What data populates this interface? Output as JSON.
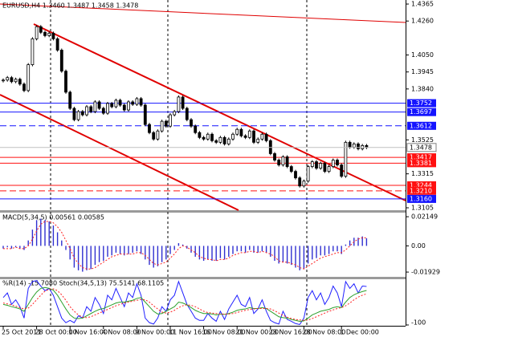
{
  "chart_data": [
    {
      "type": "candlestick",
      "title": "EURUSD,H4 1.3460 1.3487 1.3458 1.3478",
      "categories": [
        "25 Oct 2011",
        null,
        null,
        null,
        null,
        null,
        null,
        null,
        "28 Oct 00:00",
        null,
        null,
        null,
        null,
        null,
        null,
        null,
        "1 Nov 16:00",
        null,
        null,
        null,
        null,
        null,
        null,
        null,
        "4 Nov 08:00",
        null,
        null,
        null,
        null,
        null,
        null,
        null,
        "9 Nov 00:00",
        null,
        null,
        null,
        null,
        null,
        null,
        null,
        "11 Nov 16:00",
        null,
        null,
        null,
        null,
        null,
        null,
        null,
        "16 Nov 08:00",
        null,
        null,
        null,
        null,
        null,
        null,
        null,
        "21 Nov 00:00",
        null,
        null,
        null,
        null,
        null,
        null,
        null,
        "23 Nov 16:00",
        null,
        null,
        null,
        null,
        null,
        null,
        null,
        "28 Nov 08:00",
        null,
        null,
        null,
        null,
        null,
        null,
        null,
        null,
        "1 Dec 00:00",
        null,
        null,
        null,
        null,
        null,
        null
      ],
      "close": [
        1.3895,
        1.391,
        1.3885,
        1.39,
        1.387,
        1.383,
        1.399,
        1.415,
        1.4225,
        1.419,
        1.417,
        1.4185,
        1.415,
        1.408,
        1.395,
        1.382,
        1.372,
        1.365,
        1.37,
        1.368,
        1.373,
        1.37,
        1.376,
        1.372,
        1.369,
        1.375,
        1.373,
        1.377,
        1.374,
        1.371,
        1.376,
        1.3745,
        1.378,
        1.374,
        1.362,
        1.357,
        1.353,
        1.358,
        1.364,
        1.361,
        1.368,
        1.37,
        1.379,
        1.372,
        1.365,
        1.361,
        1.357,
        1.354,
        1.353,
        1.356,
        1.352,
        1.351,
        1.354,
        1.35,
        1.353,
        1.356,
        1.359,
        1.355,
        1.354,
        1.358,
        1.351,
        1.353,
        1.356,
        1.352,
        1.344,
        1.34,
        1.337,
        1.342,
        1.336,
        1.333,
        1.329,
        1.324,
        1.327,
        1.336,
        1.339,
        1.335,
        1.338,
        1.333,
        1.336,
        1.34,
        1.337,
        1.33,
        1.351,
        1.348,
        1.35,
        1.347,
        1.349,
        1.3478
      ],
      "ylim": [
        1.309,
        1.439
      ],
      "yticks": [
        1.4365,
        {
          "value": 1.426,
          "label": "1.4260"
        },
        {
          "value": 1.405,
          "label": "1.4050"
        },
        1.3945,
        {
          "value": 1.384,
          "label": "1.3840"
        },
        1.3525,
        1.3315,
        1.3105
      ],
      "levels": [
        {
          "value": 1.3752,
          "color": "#1414ff",
          "dashed": false
        },
        {
          "value": 1.3697,
          "color": "#1414ff",
          "dashed": false
        },
        {
          "value": 1.3612,
          "color": "#1414ff",
          "dashed": true
        },
        {
          "value": 1.3417,
          "color": "#ff1010",
          "dashed": false
        },
        {
          "value": 1.3381,
          "color": "#ff1010",
          "dashed": false
        },
        {
          "value": 1.3244,
          "color": "#ff1010",
          "dashed": false
        },
        {
          "value": 1.321,
          "label": "1.3210",
          "color": "#ff1010",
          "dashed": true
        },
        {
          "value": 1.316,
          "label": "1.3160",
          "color": "#1414ff",
          "dashed": false
        }
      ]
    },
    {
      "type": "bar",
      "title": "MACD(5,34,5) 0.00561 0.00585",
      "color": "#2f2fd0",
      "signal_color": "#ff2020",
      "values": [
        -0.002,
        -0.001,
        -0.002,
        -0.001,
        -0.002,
        -0.003,
        0.004,
        0.012,
        0.019,
        0.02,
        0.019,
        0.018,
        0.015,
        0.01,
        0.004,
        -0.003,
        -0.01,
        -0.016,
        -0.018,
        -0.019,
        -0.018,
        -0.017,
        -0.014,
        -0.012,
        -0.011,
        -0.008,
        -0.007,
        -0.005,
        -0.006,
        -0.007,
        -0.006,
        -0.005,
        -0.004,
        -0.006,
        -0.01,
        -0.014,
        -0.016,
        -0.015,
        -0.012,
        -0.01,
        -0.006,
        -0.003,
        0.002,
        0.001,
        -0.002,
        -0.005,
        -0.008,
        -0.01,
        -0.011,
        -0.01,
        -0.011,
        -0.011,
        -0.009,
        -0.01,
        -0.008,
        -0.006,
        -0.004,
        -0.004,
        -0.005,
        -0.003,
        -0.005,
        -0.005,
        -0.004,
        -0.005,
        -0.008,
        -0.011,
        -0.013,
        -0.012,
        -0.013,
        -0.014,
        -0.016,
        -0.018,
        -0.017,
        -0.013,
        -0.01,
        -0.009,
        -0.007,
        -0.007,
        -0.006,
        -0.004,
        -0.004,
        -0.006,
        0.001,
        0.004,
        0.006,
        0.006,
        0.007,
        0.00561
      ],
      "signal": [
        -0.002,
        -0.002,
        -0.002,
        -0.001,
        -0.002,
        -0.002,
        0.0,
        0.005,
        0.011,
        0.016,
        0.018,
        0.018,
        0.017,
        0.014,
        0.01,
        0.004,
        -0.002,
        -0.009,
        -0.013,
        -0.016,
        -0.017,
        -0.017,
        -0.016,
        -0.014,
        -0.012,
        -0.01,
        -0.008,
        -0.007,
        -0.006,
        -0.006,
        -0.006,
        -0.006,
        -0.005,
        -0.005,
        -0.007,
        -0.01,
        -0.013,
        -0.014,
        -0.013,
        -0.012,
        -0.009,
        -0.006,
        -0.002,
        0.0,
        -0.001,
        -0.003,
        -0.005,
        -0.008,
        -0.009,
        -0.01,
        -0.01,
        -0.011,
        -0.01,
        -0.01,
        -0.009,
        -0.007,
        -0.006,
        -0.005,
        -0.005,
        -0.004,
        -0.004,
        -0.005,
        -0.004,
        -0.005,
        -0.006,
        -0.008,
        -0.011,
        -0.012,
        -0.012,
        -0.013,
        -0.014,
        -0.016,
        -0.017,
        -0.015,
        -0.013,
        -0.011,
        -0.009,
        -0.008,
        -0.007,
        -0.006,
        -0.005,
        -0.005,
        -0.003,
        0.0,
        0.003,
        0.005,
        0.006,
        0.00585
      ],
      "ylim": [
        -0.0228,
        0.0245
      ],
      "yticks": [
        0.02149,
        {
          "value": 0,
          "label": "0.00"
        },
        -0.01929
      ]
    },
    {
      "type": "line",
      "title": "%R(14) -15.7080  Stoch(34,5,13) 75.5141 68.1105",
      "ylim": [
        -100,
        0
      ],
      "y2lim": [
        0,
        100
      ],
      "yticks": [
        -100
      ],
      "series": [
        {
          "color": "#2020ff",
          "dashed": false,
          "values": [
            -40,
            -30,
            -55,
            -45,
            -60,
            -85,
            -20,
            -5,
            -3,
            -15,
            -25,
            -20,
            -35,
            -60,
            -85,
            -95,
            -90,
            -95,
            -80,
            -85,
            -60,
            -70,
            -40,
            -55,
            -75,
            -35,
            -45,
            -20,
            -40,
            -60,
            -30,
            -40,
            -10,
            -35,
            -85,
            -95,
            -98,
            -85,
            -60,
            -70,
            -45,
            -35,
            -5,
            -30,
            -55,
            -70,
            -85,
            -90,
            -90,
            -75,
            -85,
            -92,
            -70,
            -88,
            -65,
            -50,
            -35,
            -55,
            -60,
            -40,
            -75,
            -65,
            -45,
            -70,
            -90,
            -95,
            -98,
            -70,
            -88,
            -92,
            -97,
            -99,
            -85,
            -40,
            -25,
            -45,
            -30,
            -55,
            -40,
            -15,
            -30,
            -60,
            -5,
            -20,
            -10,
            -30,
            -15,
            -15.708
          ]
        },
        {
          "color": "#2ca02c",
          "dashed": false,
          "axis": "y2",
          "values": [
            45,
            43,
            40,
            38,
            35,
            30,
            45,
            60,
            72,
            80,
            82,
            80,
            76,
            65,
            50,
            35,
            22,
            15,
            14,
            15,
            20,
            25,
            30,
            34,
            36,
            40,
            44,
            48,
            50,
            50,
            52,
            54,
            58,
            60,
            50,
            40,
            30,
            24,
            25,
            30,
            35,
            40,
            50,
            48,
            44,
            38,
            32,
            28,
            25,
            25,
            24,
            22,
            24,
            23,
            25,
            28,
            32,
            34,
            35,
            38,
            36,
            36,
            38,
            36,
            30,
            24,
            18,
            16,
            15,
            12,
            10,
            8,
            9,
            15,
            22,
            26,
            30,
            32,
            34,
            38,
            40,
            38,
            50,
            60,
            66,
            70,
            73,
            75.5141
          ]
        },
        {
          "color": "#ff2020",
          "dashed": true,
          "axis": "y2",
          "values": [
            48,
            46,
            44,
            41,
            38,
            35,
            37,
            45,
            55,
            65,
            74,
            78,
            79,
            75,
            66,
            54,
            40,
            30,
            22,
            17,
            16,
            18,
            22,
            26,
            30,
            34,
            38,
            42,
            45,
            48,
            50,
            52,
            54,
            56,
            55,
            50,
            42,
            35,
            28,
            26,
            28,
            32,
            38,
            42,
            44,
            43,
            40,
            35,
            30,
            27,
            26,
            25,
            24,
            24,
            24,
            25,
            27,
            30,
            32,
            34,
            35,
            36,
            36,
            36,
            35,
            31,
            26,
            21,
            17,
            14,
            12,
            11,
            10,
            11,
            14,
            18,
            22,
            26,
            30,
            33,
            36,
            38,
            42,
            48,
            55,
            61,
            65,
            68.1105
          ]
        }
      ]
    }
  ]
}
